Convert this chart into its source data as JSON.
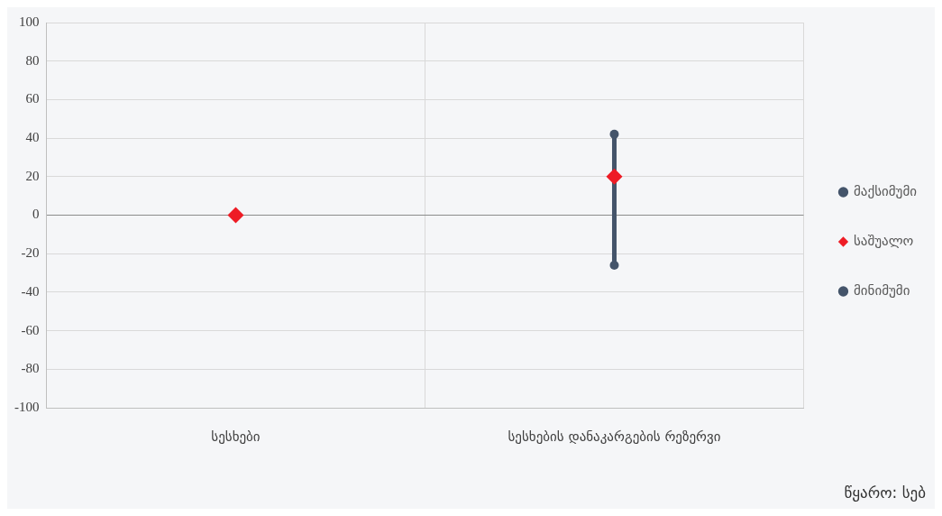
{
  "chart_data": {
    "type": "scatter",
    "categories": [
      "სესხები",
      "სესხების დანაკარგების რეზერვი"
    ],
    "series": [
      {
        "name": "მაქსიმუმი",
        "color": "#44546a",
        "marker": "circle",
        "values": [
          null,
          42
        ]
      },
      {
        "name": "საშუალო",
        "color": "#ee1c25",
        "marker": "diamond",
        "values": [
          0,
          20
        ]
      },
      {
        "name": "მინიმუმი",
        "color": "#44546a",
        "marker": "circle",
        "values": [
          null,
          -26
        ]
      }
    ],
    "ylim": [
      -100,
      100
    ],
    "yticks": [
      -100,
      -80,
      -60,
      -40,
      -20,
      0,
      20,
      40,
      60,
      80,
      100
    ],
    "grid": true,
    "legend": "right",
    "annotations": [
      "წყარო: სებ"
    ]
  }
}
